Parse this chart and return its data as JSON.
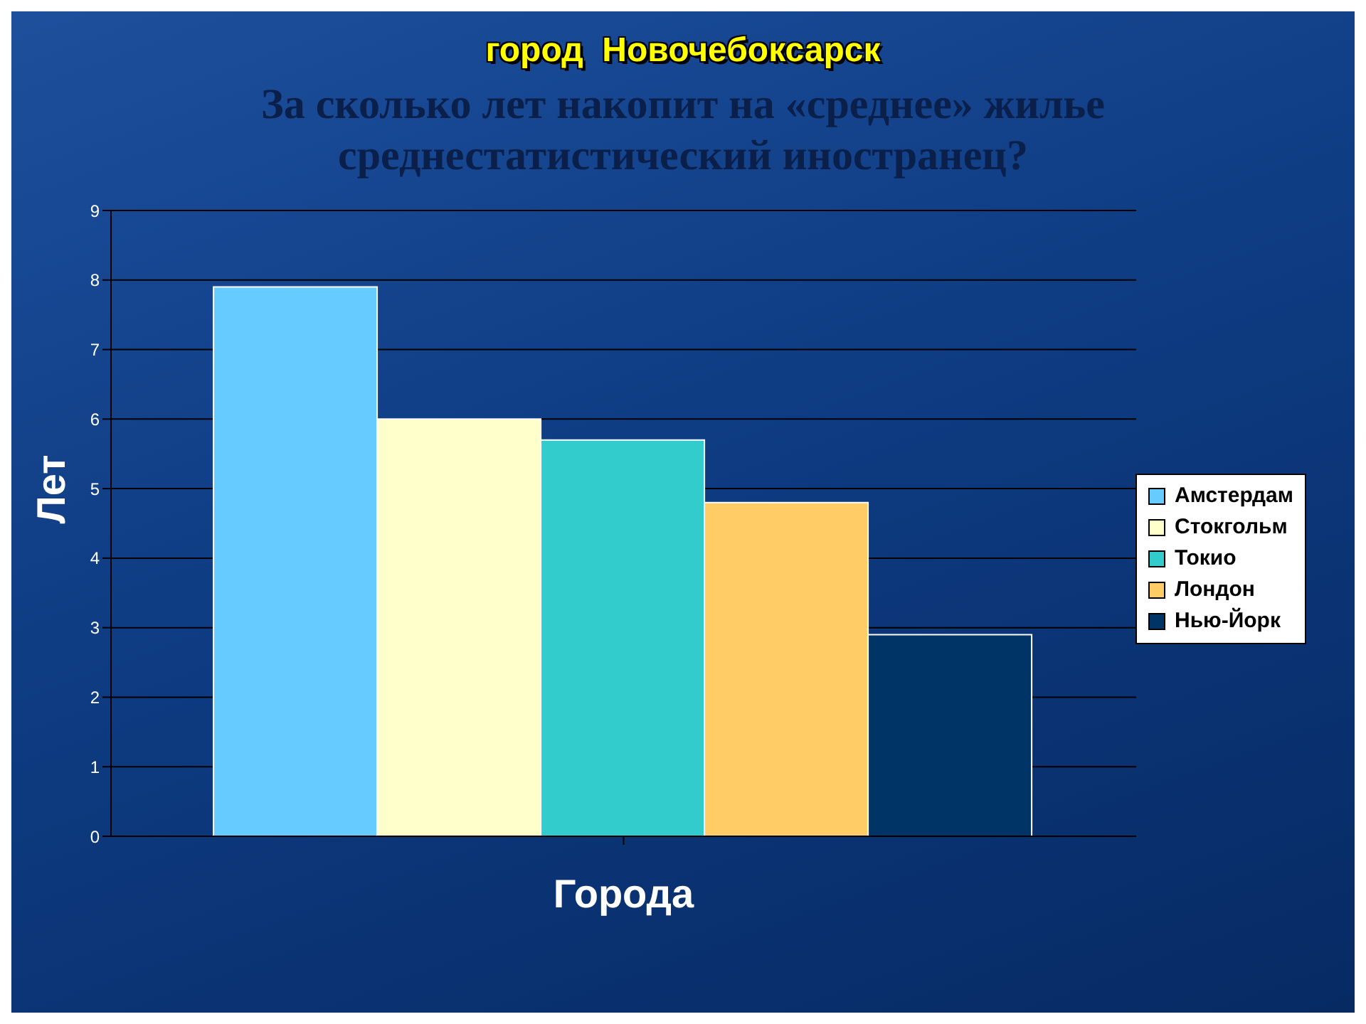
{
  "chart_data": {
    "type": "bar",
    "title": "город  Новочебоксарск",
    "subtitle": "За сколько лет накопит на «среднее» жилье среднестатистический иностранец?",
    "xlabel": "Города",
    "ylabel": "Лет",
    "categories": [
      null
    ],
    "series": [
      {
        "name": "Амстердам",
        "color": "#66ccff",
        "values": [
          7.9
        ]
      },
      {
        "name": "Стокгольм",
        "color": "#ffffcc",
        "values": [
          6.0
        ]
      },
      {
        "name": "Токио",
        "color": "#33cccc",
        "values": [
          5.7
        ]
      },
      {
        "name": "Лондон",
        "color": "#ffcc66",
        "values": [
          4.8
        ]
      },
      {
        "name": "Нью-Йорк",
        "color": "#003366",
        "values": [
          2.9
        ]
      }
    ],
    "ylim": [
      0,
      9
    ],
    "yticks": [
      0,
      1,
      2,
      3,
      4,
      5,
      6,
      7,
      8,
      9
    ],
    "grid": "y",
    "legend": "right"
  }
}
